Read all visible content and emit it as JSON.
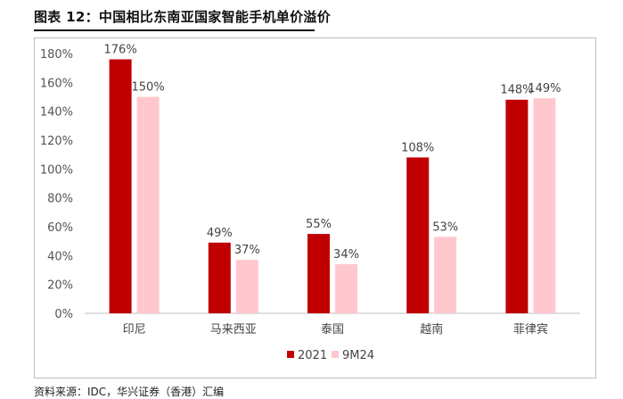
{
  "header": {
    "title": "图表 12：中国相比东南亚国家智能手机单价溢价"
  },
  "footer": {
    "source": "资料来源：IDC，华兴证券（香港）汇编"
  },
  "colors": {
    "series_2021": "#c00000",
    "series_9m24": "#ffc7ce",
    "axis": "#bfbfbf",
    "text": "#444444"
  },
  "chart_data": {
    "type": "bar",
    "title": "",
    "xlabel": "",
    "ylabel": "",
    "categories": [
      "印尼",
      "马来西亚",
      "泰国",
      "越南",
      "菲律宾"
    ],
    "series": [
      {
        "name": "2021",
        "values": [
          176,
          49,
          55,
          108,
          148
        ],
        "labels": [
          "176%",
          "49%",
          "55%",
          "108%",
          "148%"
        ],
        "color": "#c00000"
      },
      {
        "name": "9M24",
        "values": [
          150,
          37,
          34,
          53,
          149
        ],
        "labels": [
          "150%",
          "37%",
          "34%",
          "53%",
          "149%"
        ],
        "color": "#ffc7ce"
      }
    ],
    "ylim": [
      0,
      180
    ],
    "yticks": [
      0,
      20,
      40,
      60,
      80,
      100,
      120,
      140,
      160,
      180
    ],
    "ytick_labels": [
      "0%",
      "20%",
      "40%",
      "60%",
      "80%",
      "100%",
      "120%",
      "140%",
      "160%",
      "180%"
    ],
    "grid": false,
    "legend_position": "bottom-center"
  }
}
